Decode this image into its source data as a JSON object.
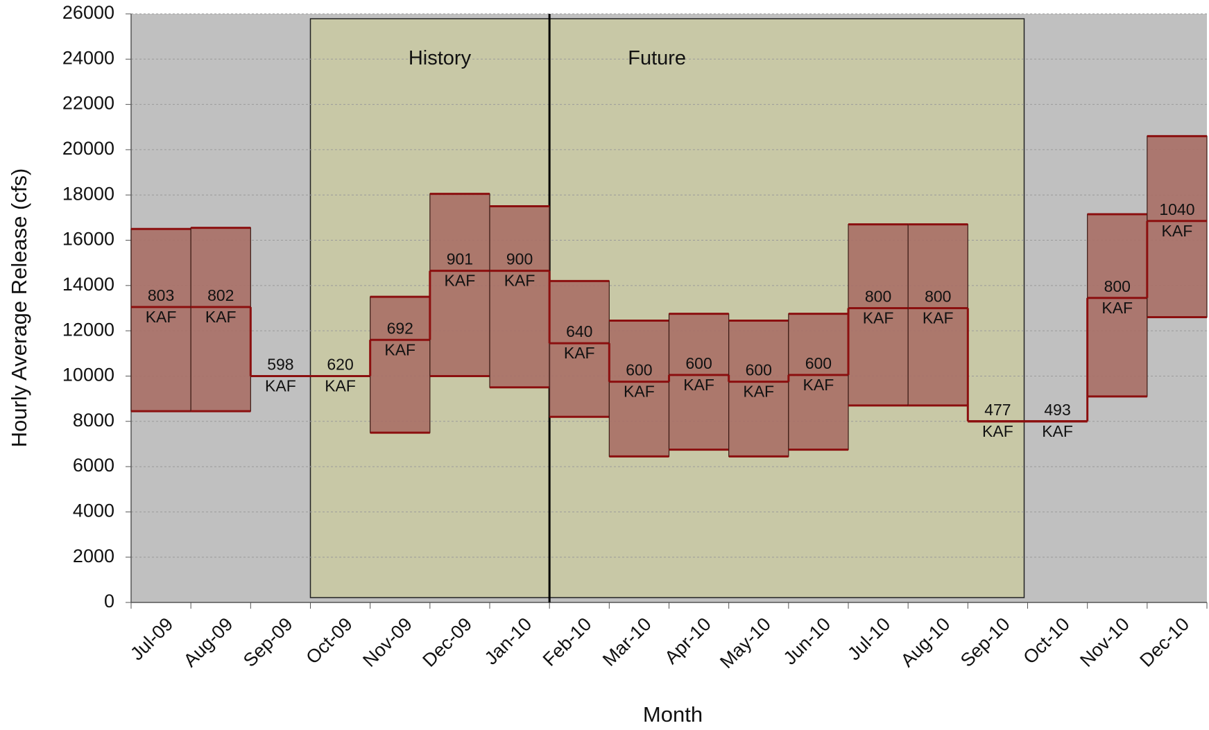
{
  "chart_data": {
    "type": "floating-bar",
    "x_label": "Month",
    "y_label": "Hourly Average Release (cfs)",
    "categories": [
      "Jul-09",
      "Aug-09",
      "Sep-09",
      "Oct-09",
      "Nov-09",
      "Dec-09",
      "Jan-10",
      "Feb-10",
      "Mar-10",
      "Apr-10",
      "May-10",
      "Jun-10",
      "Jul-10",
      "Aug-10",
      "Sep-10",
      "Oct-10",
      "Nov-10",
      "Dec-10"
    ],
    "low": [
      8450,
      8450,
      10000,
      10000,
      7500,
      10000,
      9500,
      8200,
      6450,
      6750,
      6450,
      6750,
      8700,
      8700,
      8000,
      8000,
      9100,
      12600
    ],
    "high": [
      16500,
      16550,
      10000,
      10000,
      13500,
      18050,
      17500,
      14200,
      12450,
      12750,
      12450,
      12750,
      16700,
      16700,
      8000,
      8000,
      17150,
      20600
    ],
    "average": [
      13050,
      13050,
      10000,
      10000,
      11600,
      14650,
      14650,
      11450,
      9750,
      10050,
      9750,
      10050,
      13000,
      13000,
      8000,
      8000,
      13450,
      16850
    ],
    "volume": [
      803,
      802,
      598,
      620,
      692,
      901,
      900,
      640,
      600,
      600,
      600,
      600,
      800,
      800,
      477,
      493,
      800,
      1040
    ],
    "volume_unit": "KAF",
    "bar_color": "#a86f66",
    "line_color": "#8b0f0f",
    "ylim": [
      0,
      26000
    ],
    "yticks": [
      0,
      2000,
      4000,
      6000,
      8000,
      10000,
      12000,
      14000,
      16000,
      18000,
      20000,
      22000,
      24000,
      26000
    ],
    "grid": true,
    "annotations": [
      "History",
      "Future"
    ],
    "shaded_from": "Oct-09",
    "shaded_to": "Sep-10",
    "divider": "Feb-10"
  }
}
